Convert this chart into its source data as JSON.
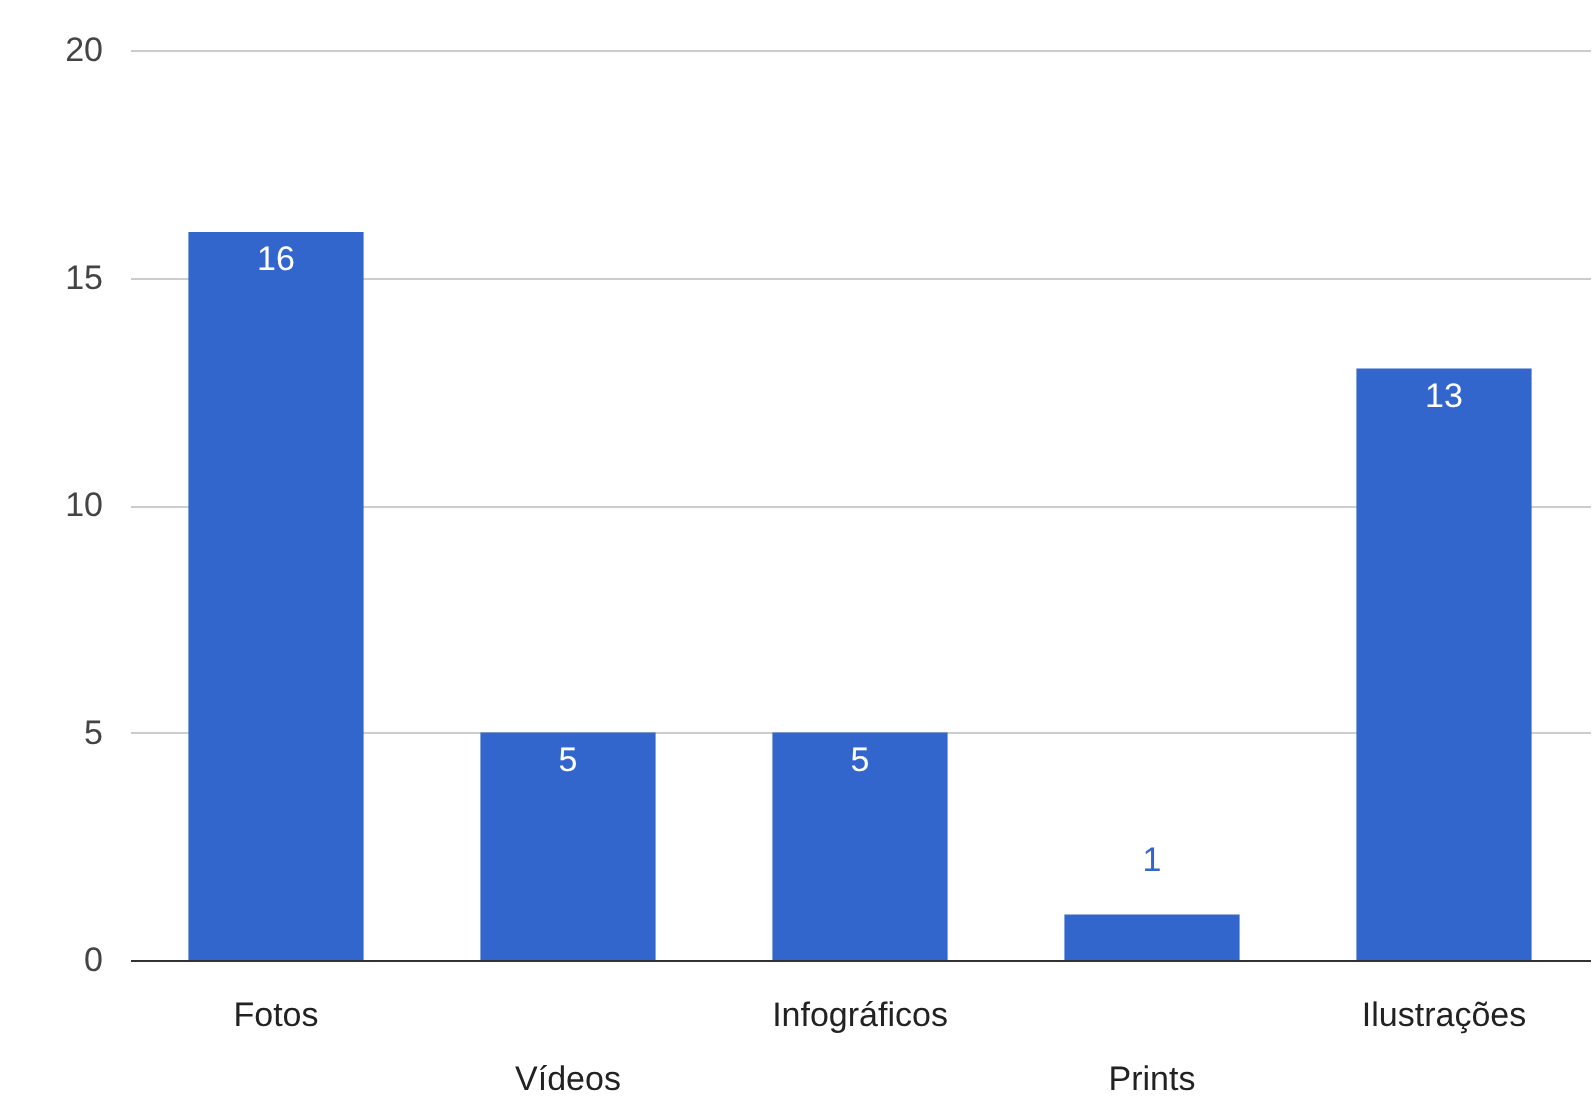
{
  "chart_data": {
    "type": "bar",
    "categories": [
      "Fotos",
      "Vídeos",
      "Infográficos",
      "Prints",
      "Ilustrações"
    ],
    "values": [
      16,
      5,
      5,
      1,
      13
    ],
    "color": "#3366cc",
    "ylim": [
      0,
      20
    ],
    "yticks": [
      0,
      5,
      10,
      15,
      20
    ],
    "grid": "y",
    "data_labels": true
  }
}
